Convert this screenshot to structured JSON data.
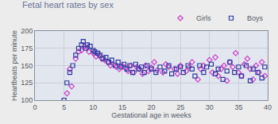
{
  "chart_data": {
    "type": "scatter",
    "title": "Fetal heart rates by sex",
    "x_label": "Gestational age in weeks",
    "y_label": "Heartbeats per minute",
    "xlim": [
      0,
      40
    ],
    "xticks": [
      0,
      5,
      10,
      15,
      20,
      25,
      30,
      35,
      40
    ],
    "ylim": [
      100,
      200
    ],
    "yticks": [
      100,
      125,
      150,
      175,
      200
    ],
    "grid": true,
    "legend": "top right",
    "series": [
      {
        "name": "Girls",
        "color": "#cc3fcc",
        "marker": "diamond",
        "x": [
          5.5,
          6,
          6.3,
          7,
          7.5,
          8,
          8.5,
          9,
          9.3,
          10,
          10.5,
          11,
          11.5,
          12,
          12.5,
          13,
          13.5,
          14,
          14.5,
          15,
          15.5,
          16,
          16.5,
          17,
          17.5,
          18,
          18.5,
          19,
          19.5,
          20,
          20.5,
          21,
          22,
          22.5,
          23,
          24,
          24.5,
          25,
          26,
          26.5,
          27,
          28,
          28.5,
          29,
          30,
          30.5,
          31,
          31.5,
          32,
          32.5,
          33,
          33.5,
          34,
          34.5,
          35,
          35.5,
          36,
          36.5,
          37,
          37.5,
          38,
          38.5,
          39,
          39.5
        ],
        "values": [
          110,
          145,
          120,
          160,
          170,
          172,
          178,
          176,
          170,
          168,
          163,
          165,
          160,
          158,
          155,
          150,
          152,
          148,
          145,
          150,
          147,
          142,
          150,
          140,
          148,
          145,
          138,
          150,
          142,
          147,
          155,
          143,
          140,
          152,
          148,
          145,
          138,
          150,
          142,
          148,
          155,
          130,
          145,
          150,
          158,
          140,
          162,
          135,
          145,
          150,
          128,
          155,
          148,
          168,
          140,
          135,
          152,
          160,
          145,
          130,
          150,
          140,
          155,
          135
        ]
      },
      {
        "name": "Boys",
        "color": "#2e3a9e",
        "marker": "square",
        "x": [
          5,
          5.5,
          6,
          6.5,
          7,
          7.5,
          8,
          8.3,
          8.7,
          9,
          9.5,
          10,
          10.3,
          10.8,
          11.2,
          11.7,
          12.2,
          12.7,
          13.2,
          13.8,
          14.3,
          14.8,
          15.3,
          15.8,
          16.3,
          16.8,
          17.3,
          17.8,
          18.3,
          18.8,
          19.3,
          20,
          20.8,
          21.5,
          22.3,
          23,
          23.5,
          24.3,
          25,
          25.5,
          26.3,
          27,
          27.5,
          28.3,
          29,
          29.5,
          30.3,
          31,
          31.5,
          32.3,
          33,
          33.5,
          34.3,
          35,
          35.5,
          36.3,
          37,
          37.5,
          38.3,
          39,
          39.5
        ],
        "values": [
          100,
          125,
          140,
          150,
          165,
          175,
          180,
          185,
          175,
          180,
          178,
          172,
          170,
          168,
          165,
          160,
          162,
          155,
          158,
          150,
          155,
          148,
          152,
          145,
          150,
          140,
          152,
          145,
          148,
          140,
          150,
          145,
          140,
          148,
          142,
          150,
          138,
          145,
          148,
          140,
          150,
          145,
          135,
          150,
          140,
          148,
          152,
          138,
          145,
          130,
          142,
          155,
          140,
          148,
          135,
          150,
          128,
          145,
          140,
          132,
          148
        ]
      }
    ]
  }
}
